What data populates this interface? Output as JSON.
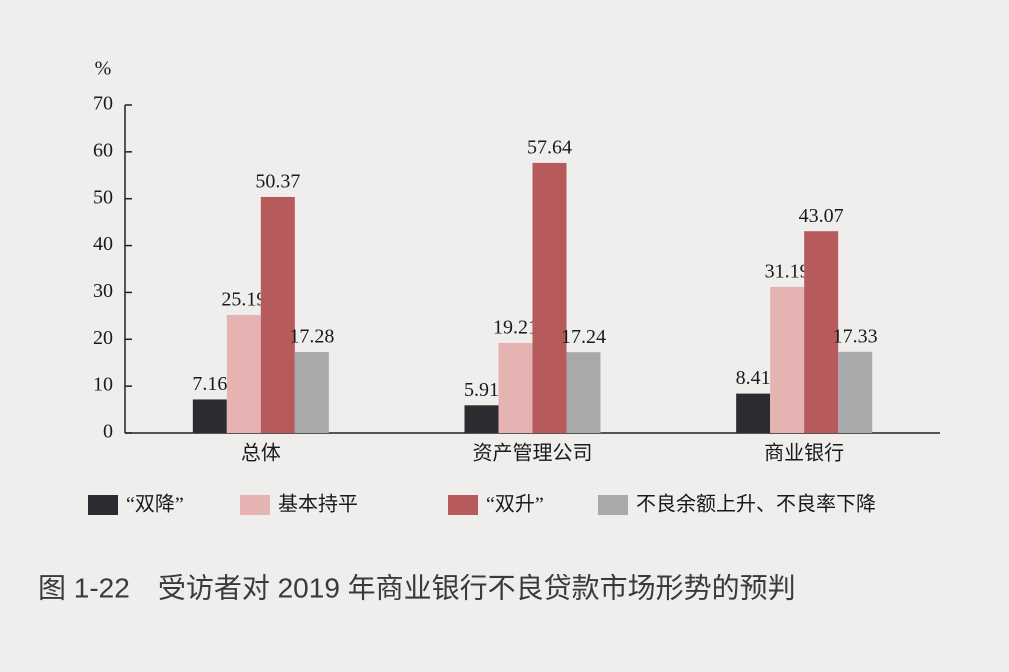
{
  "chart_data": {
    "type": "bar",
    "title": "图 1-22　受访者对 2019 年商业银行不良贷款市场形势的预判",
    "y_label": "%",
    "categories": [
      "总体",
      "资产管理公司",
      "商业银行"
    ],
    "series": [
      {
        "name": "“双降”",
        "color": "#2b2b30",
        "values": [
          7.16,
          5.91,
          8.41
        ]
      },
      {
        "name": "基本持平",
        "color": "#e6b3b3",
        "values": [
          25.19,
          19.21,
          31.19
        ]
      },
      {
        "name": "“双升”",
        "color": "#b65a5c",
        "values": [
          50.37,
          57.64,
          43.07
        ]
      },
      {
        "name": "不良余额上升、不良率下降",
        "color": "#a9a9ab",
        "values": [
          17.28,
          17.24,
          17.33
        ]
      }
    ],
    "ylim": [
      0,
      70
    ],
    "yticks": [
      0,
      10,
      20,
      30,
      40,
      50,
      60,
      70
    ],
    "grid": false
  }
}
